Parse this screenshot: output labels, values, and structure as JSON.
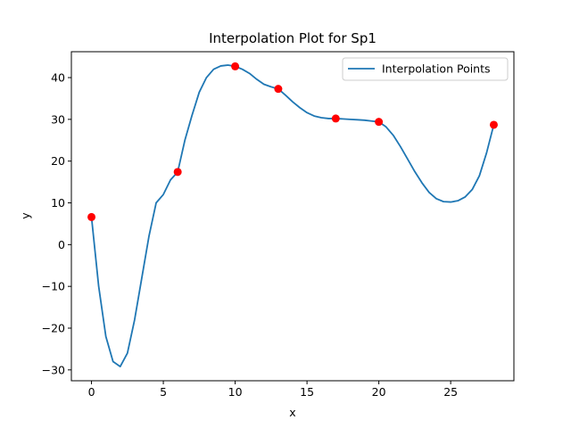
{
  "chart_data": {
    "type": "line",
    "title": "Interpolation Plot for Sp1",
    "xlabel": "x",
    "ylabel": "y",
    "xlim": [
      -1.4,
      29.4
    ],
    "ylim": [
      -32.6,
      46.2
    ],
    "xticks": [
      0,
      5,
      10,
      15,
      20,
      25
    ],
    "yticks": [
      -30,
      -20,
      -10,
      0,
      10,
      20,
      30,
      40
    ],
    "xtick_labels": [
      "0",
      "5",
      "10",
      "15",
      "20",
      "25"
    ],
    "ytick_labels": [
      "−30",
      "−20",
      "−10",
      "0",
      "10",
      "20",
      "30",
      "40"
    ],
    "grid": false,
    "legend_position": "top-right",
    "series": [
      {
        "name": "Interpolation Points",
        "kind": "line",
        "color": "#1f77b4",
        "x": [
          0,
          0.5,
          1,
          1.5,
          2,
          2.5,
          3,
          3.5,
          4,
          4.5,
          5,
          5.5,
          6,
          6.5,
          7,
          7.5,
          8,
          8.5,
          9,
          9.5,
          10,
          10.5,
          11,
          11.5,
          12,
          12.5,
          13,
          13.5,
          14,
          14.5,
          15,
          15.5,
          16,
          16.5,
          17,
          17.5,
          18,
          18.5,
          19,
          19.5,
          20,
          20.5,
          21,
          21.5,
          22,
          22.5,
          23,
          23.5,
          24,
          24.5,
          25,
          25.5,
          26,
          26.5,
          27,
          27.5,
          28
        ],
        "y": [
          6.6,
          -10,
          -22,
          -28,
          -29.2,
          -26,
          -18,
          -8,
          2,
          10,
          12,
          15.5,
          17.4,
          25,
          31,
          36.5,
          40,
          42,
          42.8,
          43,
          42.7,
          42,
          41,
          39.6,
          38.4,
          37.8,
          37.3,
          35.8,
          34.2,
          32.8,
          31.6,
          30.8,
          30.4,
          30.2,
          30.2,
          30.1,
          30,
          29.9,
          29.8,
          29.6,
          29.4,
          28.2,
          26.2,
          23.5,
          20.5,
          17.5,
          14.8,
          12.5,
          11,
          10.3,
          10.2,
          10.5,
          11.4,
          13.2,
          16.5,
          22,
          28.7
        ]
      },
      {
        "name": "",
        "kind": "points",
        "color": "#ff0000",
        "x": [
          0,
          6,
          10,
          13,
          17,
          20,
          28
        ],
        "y": [
          6.6,
          17.4,
          42.7,
          37.3,
          30.2,
          29.4,
          28.7
        ]
      }
    ]
  }
}
